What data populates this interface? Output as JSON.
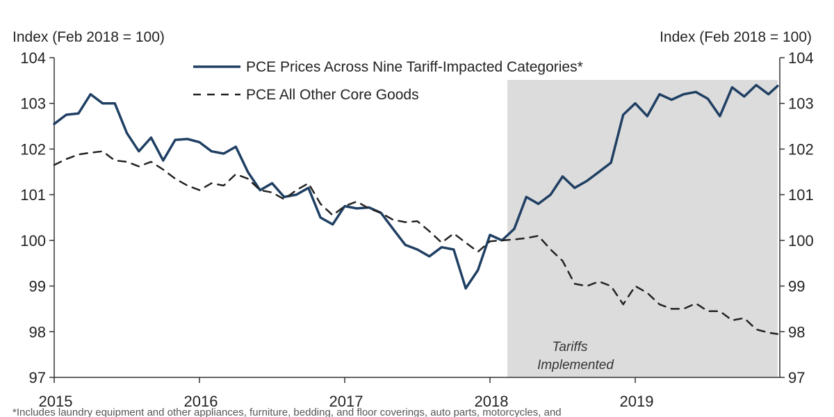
{
  "chart_data": {
    "type": "line",
    "title": "",
    "ylabel_left": "Index (Feb 2018 = 100)",
    "ylabel_right": "Index (Feb 2018 = 100)",
    "ylim": [
      97,
      104
    ],
    "yticks": [
      97,
      98,
      99,
      100,
      101,
      102,
      103,
      104
    ],
    "xlim": [
      2015.0,
      2019.98
    ],
    "xticks": [
      2015,
      2016,
      2017,
      2018,
      2019
    ],
    "xtick_labels": [
      "2015",
      "2016",
      "2017",
      "2018",
      "2019"
    ],
    "shaded_region": {
      "start": 2018.12,
      "end": 2019.98,
      "color": "#dcdcdc",
      "label_line1": "Tariffs",
      "label_line2": "Implemented"
    },
    "legend_position": "top-center",
    "footnote": "*Includes laundry equipment and other appliances, furniture, bedding, and floor coverings, auto parts, motorcycles, and",
    "series": [
      {
        "name": "PCE Prices Across Nine Tariff-Impacted Categories*",
        "style": "solid",
        "color": "#1f3f63",
        "x": [
          2015.0,
          2015.083,
          2015.167,
          2015.25,
          2015.333,
          2015.417,
          2015.5,
          2015.583,
          2015.667,
          2015.75,
          2015.833,
          2015.917,
          2016.0,
          2016.083,
          2016.167,
          2016.25,
          2016.333,
          2016.417,
          2016.5,
          2016.583,
          2016.667,
          2016.75,
          2016.833,
          2016.917,
          2017.0,
          2017.083,
          2017.167,
          2017.25,
          2017.333,
          2017.417,
          2017.5,
          2017.583,
          2017.667,
          2017.75,
          2017.833,
          2017.917,
          2018.0,
          2018.083,
          2018.167,
          2018.25,
          2018.333,
          2018.417,
          2018.5,
          2018.583,
          2018.667,
          2018.75,
          2018.833,
          2018.917,
          2019.0,
          2019.083,
          2019.167,
          2019.25,
          2019.333,
          2019.417,
          2019.5,
          2019.583,
          2019.667,
          2019.75,
          2019.833,
          2019.917,
          2019.98
        ],
        "values": [
          102.55,
          102.75,
          102.78,
          103.2,
          103.0,
          103.0,
          102.35,
          101.95,
          102.25,
          101.75,
          102.2,
          102.22,
          102.15,
          101.95,
          101.9,
          102.05,
          101.5,
          101.1,
          101.25,
          100.95,
          101.0,
          101.15,
          100.5,
          100.35,
          100.75,
          100.7,
          100.72,
          100.6,
          100.25,
          99.9,
          99.8,
          99.65,
          99.85,
          99.8,
          98.95,
          99.35,
          100.12,
          100.0,
          100.25,
          100.95,
          100.8,
          101.0,
          101.4,
          101.15,
          101.3,
          101.5,
          101.7,
          102.75,
          103.0,
          102.72,
          103.2,
          103.08,
          103.2,
          103.25,
          103.1,
          102.72,
          103.35,
          103.15,
          103.4,
          103.2,
          103.38
        ]
      },
      {
        "name": "PCE All Other Core Goods",
        "style": "dashed",
        "color": "#222222",
        "x": [
          2015.0,
          2015.083,
          2015.167,
          2015.25,
          2015.333,
          2015.417,
          2015.5,
          2015.583,
          2015.667,
          2015.75,
          2015.833,
          2015.917,
          2016.0,
          2016.083,
          2016.167,
          2016.25,
          2016.333,
          2016.417,
          2016.5,
          2016.583,
          2016.667,
          2016.75,
          2016.833,
          2016.917,
          2017.0,
          2017.083,
          2017.167,
          2017.25,
          2017.333,
          2017.417,
          2017.5,
          2017.583,
          2017.667,
          2017.75,
          2017.833,
          2017.917,
          2018.0,
          2018.083,
          2018.167,
          2018.25,
          2018.333,
          2018.417,
          2018.5,
          2018.583,
          2018.667,
          2018.75,
          2018.833,
          2018.917,
          2019.0,
          2019.083,
          2019.167,
          2019.25,
          2019.333,
          2019.417,
          2019.5,
          2019.583,
          2019.667,
          2019.75,
          2019.833,
          2019.917,
          2019.98
        ],
        "values": [
          101.65,
          101.78,
          101.88,
          101.92,
          101.95,
          101.75,
          101.72,
          101.62,
          101.72,
          101.55,
          101.35,
          101.2,
          101.1,
          101.25,
          101.2,
          101.45,
          101.35,
          101.1,
          101.05,
          100.9,
          101.1,
          101.25,
          100.8,
          100.55,
          100.75,
          100.85,
          100.7,
          100.6,
          100.45,
          100.4,
          100.42,
          100.2,
          99.95,
          100.15,
          99.95,
          99.75,
          99.98,
          100.0,
          100.02,
          100.05,
          100.1,
          99.8,
          99.55,
          99.05,
          99.0,
          99.1,
          99.0,
          98.6,
          99.0,
          98.85,
          98.6,
          98.5,
          98.5,
          98.62,
          98.45,
          98.45,
          98.25,
          98.3,
          98.05,
          97.98,
          97.95
        ]
      }
    ]
  }
}
